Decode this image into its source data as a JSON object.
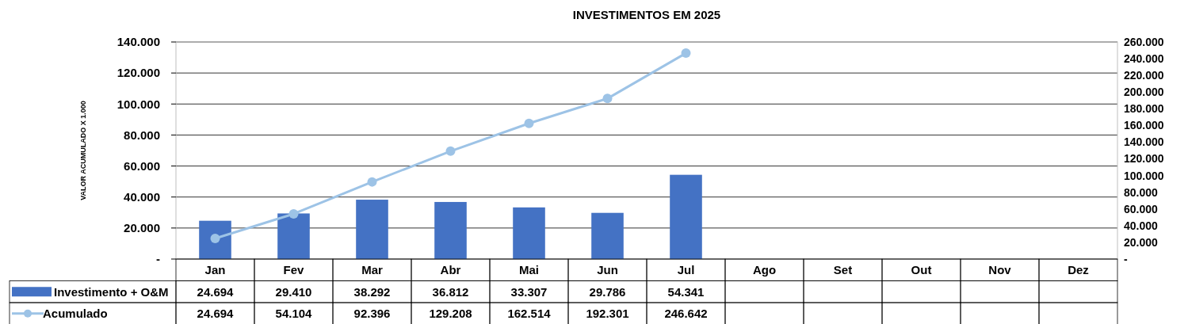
{
  "chart_data": {
    "type": "bar",
    "title": "INVESTIMENTOS  EM 2025",
    "ylabel": "VALOR ACUMULADO  X 1.000",
    "categories": [
      "Jan",
      "Fev",
      "Mar",
      "Abr",
      "Mai",
      "Jun",
      "Jul",
      "Ago",
      "Set",
      "Out",
      "Nov",
      "Dez"
    ],
    "series": [
      {
        "name": "Investimento + O&M",
        "color": "#4472c4",
        "values": [
          24694,
          29410,
          38292,
          36812,
          33307,
          29786,
          54341,
          null,
          null,
          null,
          null,
          null
        ],
        "value_labels": [
          "24.694",
          "29.410",
          "38.292",
          "36.812",
          "33.307",
          "29.786",
          "54.341",
          null,
          null,
          null,
          null,
          null
        ]
      },
      {
        "name": "Acumulado",
        "type": "line",
        "axis": "y2",
        "color": "#9dc3e6",
        "marker": "circle",
        "values": [
          24694,
          54104,
          92396,
          129208,
          162514,
          192301,
          246642,
          null,
          null,
          null,
          null,
          null
        ],
        "value_labels": [
          "24.694",
          "54.104",
          "92.396",
          "129.208",
          "162.514",
          "192.301",
          "246.642",
          null,
          null,
          null,
          null,
          null
        ]
      }
    ],
    "ylim": [
      0,
      140000
    ],
    "yticks": [
      {
        "value": 0,
        "label": "-"
      },
      {
        "value": 20000,
        "label": "20.000"
      },
      {
        "value": 40000,
        "label": "40.000"
      },
      {
        "value": 60000,
        "label": "60.000"
      },
      {
        "value": 80000,
        "label": "80.000"
      },
      {
        "value": 100000,
        "label": "100.000"
      },
      {
        "value": 120000,
        "label": "120.000"
      },
      {
        "value": 140000,
        "label": "140.000"
      }
    ],
    "y2lim": [
      0,
      260000
    ],
    "y2ticks": [
      {
        "value": 0,
        "label": "-"
      },
      {
        "value": 20000,
        "label": "20.000"
      },
      {
        "value": 40000,
        "label": "40.000"
      },
      {
        "value": 60000,
        "label": "60.000"
      },
      {
        "value": 80000,
        "label": "80.000"
      },
      {
        "value": 100000,
        "label": "100.000"
      },
      {
        "value": 120000,
        "label": "120.000"
      },
      {
        "value": 140000,
        "label": "140.000"
      },
      {
        "value": 160000,
        "label": "160.000"
      },
      {
        "value": 180000,
        "label": "180.000"
      },
      {
        "value": 200000,
        "label": "200.000"
      },
      {
        "value": 220000,
        "label": "220.000"
      },
      {
        "value": 240000,
        "label": "240.000"
      },
      {
        "value": 260000,
        "label": "260.000"
      }
    ],
    "grid": "y",
    "legend": "bottom"
  }
}
